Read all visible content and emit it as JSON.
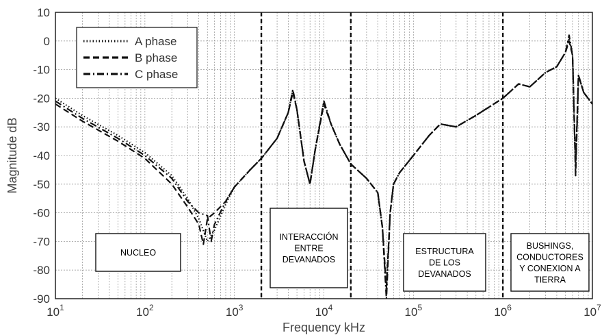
{
  "chart_data": {
    "type": "line",
    "title": "",
    "xlabel": "Frequency kHz",
    "ylabel": "Magnitude dB",
    "x_scale": "log",
    "xlim": [
      10,
      10000000
    ],
    "ylim": [
      -90,
      10
    ],
    "x_ticks": [
      {
        "base": "10",
        "exp": "1"
      },
      {
        "base": "10",
        "exp": "2"
      },
      {
        "base": "10",
        "exp": "3"
      },
      {
        "base": "10",
        "exp": "4"
      },
      {
        "base": "10",
        "exp": "5"
      },
      {
        "base": "10",
        "exp": "6"
      },
      {
        "base": "10",
        "exp": "7"
      }
    ],
    "y_ticks": [
      "10",
      "0",
      "-10",
      "-20",
      "-30",
      "-40",
      "-50",
      "-60",
      "-70",
      "-80",
      "-90"
    ],
    "grid": true,
    "legend_position": "top-left",
    "series": [
      {
        "name": "A phase",
        "style": "dotted",
        "x": [
          10,
          20,
          50,
          100,
          200,
          300,
          400,
          500,
          600,
          800,
          1000,
          1500,
          2000,
          3000,
          4000,
          4500,
          5000,
          6000,
          7000,
          8000,
          10000,
          12000,
          15000,
          20000,
          30000,
          40000,
          45000,
          50000,
          55000,
          60000,
          70000,
          100000,
          150000,
          200000,
          300000,
          500000,
          1000000,
          1500000,
          2000000,
          3000000,
          4000000,
          5000000,
          5500000,
          6000000,
          6500000,
          7000000,
          8000000,
          10000000
        ],
        "y": [
          -20,
          -26,
          -33,
          -39,
          -47,
          -55,
          -62,
          -70,
          -66,
          -57,
          -51,
          -45,
          -41,
          -34,
          -25,
          -17,
          -24,
          -42,
          -50,
          -38,
          -21,
          -29,
          -36,
          -43,
          -48,
          -53,
          -65,
          -88,
          -60,
          -50,
          -46,
          -40,
          -33,
          -29,
          -30,
          -26,
          -20,
          -15,
          -16,
          -11,
          -9,
          -4,
          1,
          -5,
          -45,
          -12,
          -18,
          -22
        ]
      },
      {
        "name": "B phase",
        "style": "dashed",
        "x": [
          10,
          20,
          50,
          100,
          200,
          300,
          400,
          450,
          500,
          600,
          800,
          1000,
          1500,
          2000,
          3000,
          4000,
          4500,
          5000,
          6000,
          7000,
          8000,
          10000,
          12000,
          15000,
          20000,
          30000,
          40000,
          45000,
          50000,
          55000,
          60000,
          70000,
          100000,
          150000,
          200000,
          300000,
          500000,
          1000000,
          1500000,
          2000000,
          3000000,
          4000000,
          5000000,
          5500000,
          6000000,
          6500000,
          7000000,
          8000000,
          10000000
        ],
        "y": [
          -22,
          -28,
          -35,
          -41,
          -50,
          -58,
          -64,
          -71,
          -62,
          -60,
          -56,
          -51,
          -45,
          -41,
          -34,
          -25,
          -18,
          -24,
          -42,
          -50,
          -38,
          -22,
          -29,
          -36,
          -43,
          -48,
          -53,
          -65,
          -86,
          -60,
          -50,
          -46,
          -40,
          -33,
          -29,
          -30,
          -26,
          -20,
          -15,
          -16,
          -11,
          -9,
          -4,
          0,
          -5,
          -44,
          -12,
          -18,
          -22
        ]
      },
      {
        "name": "C phase",
        "style": "dashdot",
        "x": [
          10,
          20,
          50,
          100,
          200,
          300,
          400,
          500,
          550,
          600,
          800,
          1000,
          1500,
          2000,
          3000,
          4000,
          4500,
          5000,
          6000,
          7000,
          8000,
          10000,
          12000,
          15000,
          20000,
          30000,
          40000,
          45000,
          50000,
          55000,
          60000,
          70000,
          100000,
          150000,
          200000,
          300000,
          500000,
          1000000,
          1500000,
          2000000,
          3000000,
          4000000,
          5000000,
          5500000,
          6000000,
          6500000,
          7000000,
          8000000,
          10000000
        ],
        "y": [
          -21,
          -27,
          -34,
          -40,
          -48,
          -56,
          -60,
          -61,
          -70,
          -64,
          -56,
          -51,
          -45,
          -41,
          -34,
          -25,
          -17,
          -24,
          -42,
          -50,
          -38,
          -21,
          -29,
          -36,
          -43,
          -48,
          -53,
          -65,
          -90,
          -60,
          -50,
          -46,
          -40,
          -33,
          -29,
          -30,
          -26,
          -20,
          -15,
          -16,
          -11,
          -9,
          -4,
          2,
          -5,
          -47,
          -12,
          -18,
          -22
        ]
      }
    ],
    "regions": [
      {
        "lines": [
          "NUCLEO"
        ]
      },
      {
        "lines": [
          "INTERACCIÓN",
          "ENTRE",
          "DEVANADOS"
        ]
      },
      {
        "lines": [
          "ESTRUCTURA",
          "DE LOS",
          "DEVANADOS"
        ]
      },
      {
        "lines": [
          "BUSHINGS,",
          "CONDUCTORES",
          "Y CONEXION A",
          "TIERRA"
        ]
      }
    ],
    "boundaries_x": [
      2000,
      20000,
      1000000
    ]
  }
}
